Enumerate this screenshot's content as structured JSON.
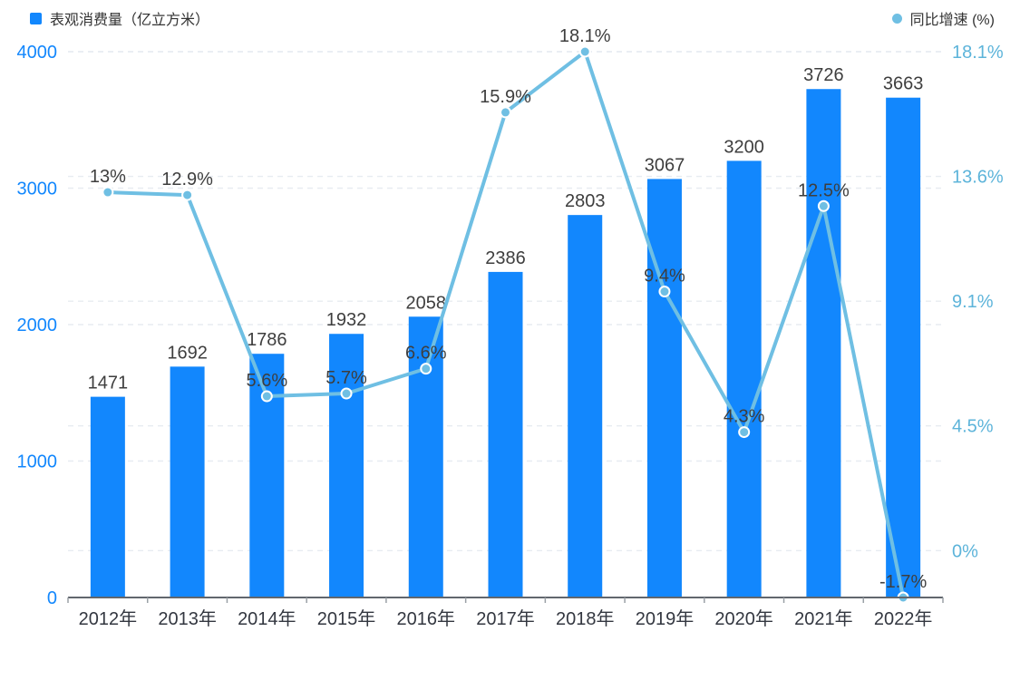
{
  "legend": {
    "bar": {
      "label": "表观消费量（亿立方米）",
      "color": "#1287fd",
      "marker": "square-icon"
    },
    "line": {
      "label": "同比增速 (%)",
      "color": "#6fbfe3",
      "marker": "circle-icon"
    }
  },
  "colors": {
    "bar": "#1287fd",
    "line": "#6fbfe3",
    "left_axis_text": "#1287fd",
    "right_axis_text": "#5db4da",
    "data_label": "#3e3e3e",
    "x_label": "#333740",
    "axis_line": "#61666d",
    "tick": "#9aa0a6",
    "grid": "#e7ecf1",
    "marker_stroke": "#ffffff",
    "background": "#ffffff"
  },
  "chart_data": {
    "type": "bar",
    "subtype": "bar-line-combo",
    "title": "",
    "categories": [
      "2012年",
      "2013年",
      "2014年",
      "2015年",
      "2016年",
      "2017年",
      "2018年",
      "2019年",
      "2020年",
      "2021年",
      "2022年"
    ],
    "series": [
      {
        "name": "表观消费量（亿立方米）",
        "type": "bar",
        "axis": "left",
        "values": [
          1471,
          1692,
          1786,
          1932,
          2058,
          2386,
          2803,
          3067,
          3200,
          3726,
          3663
        ],
        "labels": [
          "1471",
          "1692",
          "1786",
          "1932",
          "2058",
          "2386",
          "2803",
          "3067",
          "3200",
          "3726",
          "3663"
        ]
      },
      {
        "name": "同比增速 (%)",
        "type": "line",
        "axis": "right",
        "values": [
          13,
          12.9,
          5.6,
          5.7,
          6.6,
          15.9,
          18.1,
          9.4,
          4.3,
          12.5,
          -1.7
        ],
        "labels": [
          "13%",
          "12.9%",
          "5.6%",
          "5.7%",
          "6.6%",
          "15.9%",
          "18.1%",
          "9.4%",
          "4.3%",
          "12.5%",
          "-1.7%"
        ]
      }
    ],
    "left_axis": {
      "min": 0,
      "max": 4000,
      "tick_values": [
        0,
        1000,
        2000,
        3000,
        4000
      ],
      "tick_labels": [
        "0",
        "1000",
        "2000",
        "3000",
        "4000"
      ]
    },
    "right_axis": {
      "min": -1.7,
      "max": 18.1,
      "tick_values": [
        0,
        4.525,
        9.05,
        13.575,
        18.1
      ],
      "tick_labels": [
        "0%",
        "4.5%",
        "9.1%",
        "13.6%",
        "18.1%"
      ]
    },
    "grid": true,
    "legend_position": "top"
  }
}
